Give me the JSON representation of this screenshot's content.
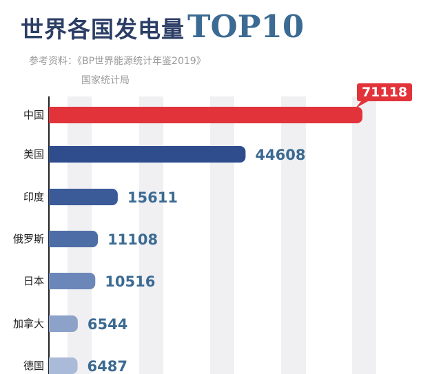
{
  "header": {
    "title_cn": "世界各国发电量",
    "title_top": "TOP10",
    "source_line": "参考资料：《BP世界能源统计年鉴2019》",
    "source_line2": "国家统计局"
  },
  "chart_data": {
    "type": "bar",
    "orientation": "horizontal",
    "title": "世界各国发电量TOP10",
    "categories": [
      "中国",
      "美国",
      "印度",
      "俄罗斯",
      "日本",
      "加拿大",
      "德国"
    ],
    "values": [
      71118,
      44608,
      15611,
      11108,
      10516,
      6544,
      6487
    ],
    "labels": [
      "71118",
      "44608",
      "15611",
      "11108",
      "10516",
      "6544",
      "6487"
    ],
    "xlim": [
      0,
      75000
    ],
    "grid": true,
    "highlight_color": "#e2333b",
    "series_colors": [
      "#e2333b",
      "#2f4d8c",
      "#3a5a98",
      "#4d6da6",
      "#6b86b8",
      "#8ca2c9",
      "#a9bbd9"
    ],
    "label_color": "#3b6a92"
  }
}
